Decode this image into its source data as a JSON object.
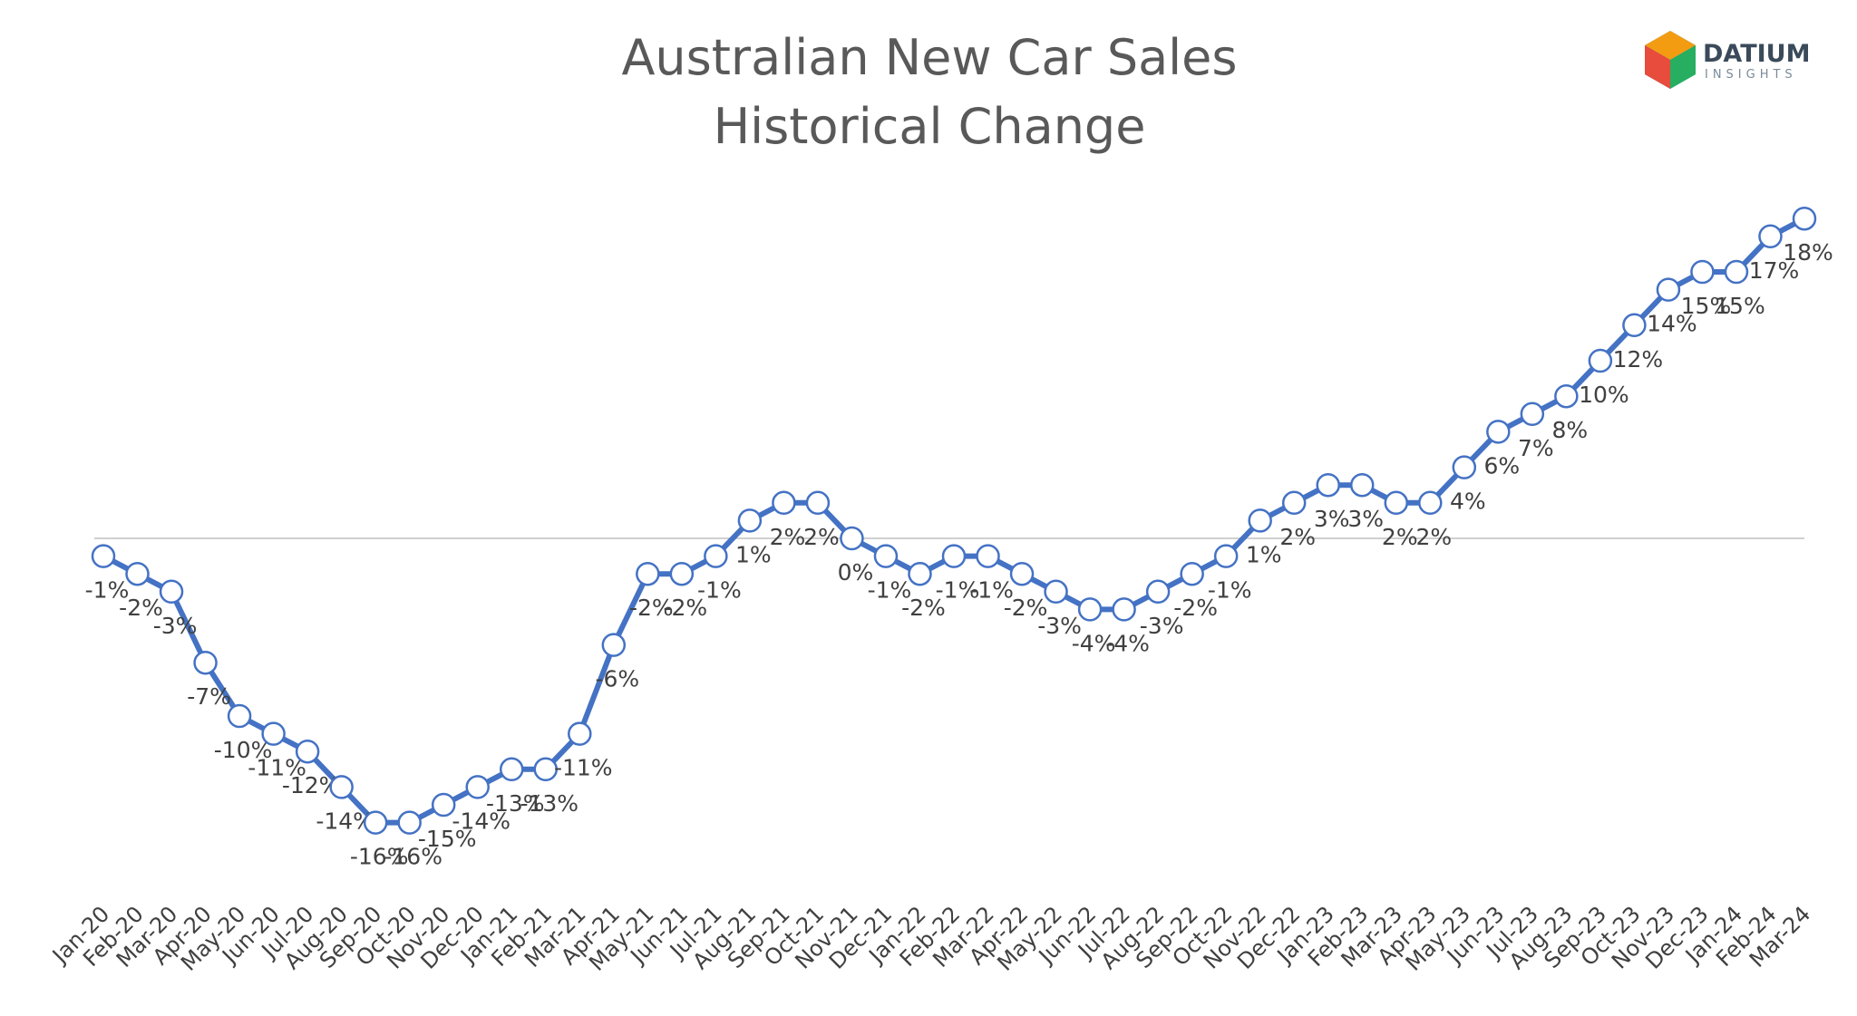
{
  "chart_data": {
    "type": "line",
    "title": "Australian New Car Sales",
    "subtitle": "Historical Change",
    "logo": {
      "name": "DATIUM",
      "tagline": "INSIGHTS"
    },
    "categories": [
      "Jan-20",
      "Feb-20",
      "Mar-20",
      "Apr-20",
      "May-20",
      "Jun-20",
      "Jul-20",
      "Aug-20",
      "Sep-20",
      "Oct-20",
      "Nov-20",
      "Dec-20",
      "Jan-21",
      "Feb-21",
      "Mar-21",
      "Apr-21",
      "May-21",
      "Jun-21",
      "Jul-21",
      "Aug-21",
      "Sep-21",
      "Oct-21",
      "Nov-21",
      "Dec-21",
      "Jan-22",
      "Feb-22",
      "Mar-22",
      "Apr-22",
      "May-22",
      "Jun-22",
      "Jul-22",
      "Aug-22",
      "Sep-22",
      "Oct-22",
      "Nov-22",
      "Dec-22",
      "Jan-23",
      "Feb-23",
      "Mar-23",
      "Apr-23",
      "May-23",
      "Jun-23",
      "Jul-23",
      "Aug-23",
      "Sep-23",
      "Oct-23",
      "Nov-23",
      "Dec-23",
      "Jan-24",
      "Feb-24",
      "Mar-24"
    ],
    "values": [
      -1,
      -2,
      -3,
      -7,
      -10,
      -11,
      -12,
      -14,
      -16,
      -16,
      -15,
      -14,
      -13,
      -13,
      -11,
      -6,
      -2,
      -2,
      -1,
      1,
      2,
      2,
      0,
      -1,
      -2,
      -1,
      -1,
      -2,
      -3,
      -4,
      -4,
      -3,
      -2,
      -1,
      1,
      2,
      3,
      3,
      2,
      2,
      4,
      6,
      7,
      8,
      10,
      12,
      14,
      15,
      15,
      17,
      18
    ],
    "value_labels": [
      "-1%",
      "-2%",
      "-3%",
      "-7%",
      "-10%",
      "-11%",
      "-12%",
      "-14%",
      "-16%",
      "-16%",
      "-15%",
      "-14%",
      "-13%",
      "-13%",
      "-11%",
      "-6%",
      "-2%",
      "-2%",
      "-1%",
      "1%",
      "2%",
      "2%",
      "0%",
      "-1%",
      "-2%",
      "-1%",
      "-1%",
      "-2%",
      "-3%",
      "-4%",
      "-4%",
      "-3%",
      "-2%",
      "-1%",
      "1%",
      "2%",
      "3%",
      "3%",
      "2%",
      "2%",
      "4%",
      "6%",
      "7%",
      "8%",
      "10%",
      "12%",
      "14%",
      "15%",
      "15%",
      "17%",
      "18%"
    ],
    "color": "#4472c4",
    "ylim": [
      -20,
      20
    ]
  }
}
